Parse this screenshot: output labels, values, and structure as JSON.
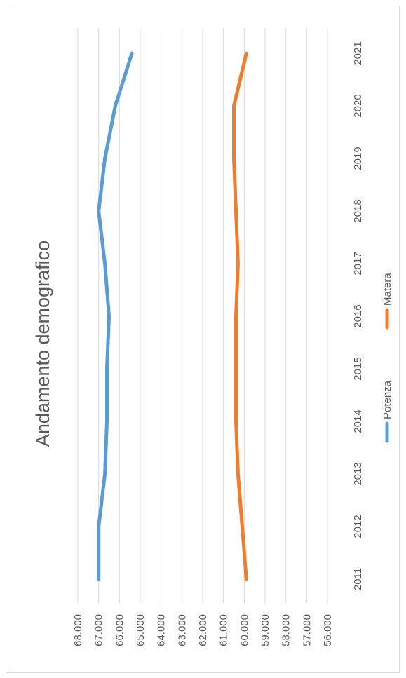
{
  "chart_data": {
    "type": "line",
    "title": "Andamento demografico",
    "orientation": "rotated-90-clockwise",
    "categories": [
      "2011",
      "2012",
      "2013",
      "2014",
      "2015",
      "2016",
      "2017",
      "2018",
      "2019",
      "2020",
      "2021"
    ],
    "series": [
      {
        "name": "Potenza",
        "color": "#5b9bd5",
        "values": [
          67000,
          67000,
          66700,
          66600,
          66600,
          66500,
          66700,
          67000,
          66700,
          66200,
          65400
        ]
      },
      {
        "name": "Matera",
        "color": "#ed7d31",
        "values": [
          59900,
          60100,
          60300,
          60400,
          60400,
          60400,
          60300,
          60400,
          60500,
          60500,
          59900
        ]
      }
    ],
    "y_ticks": [
      "68.000",
      "67.000",
      "66.000",
      "65.000",
      "64.000",
      "63.000",
      "62.000",
      "61.000",
      "60.000",
      "59.000",
      "58.000",
      "57.000",
      "56.000"
    ],
    "ylim": [
      56000,
      68000
    ],
    "grid": true,
    "legend_position": "bottom"
  }
}
